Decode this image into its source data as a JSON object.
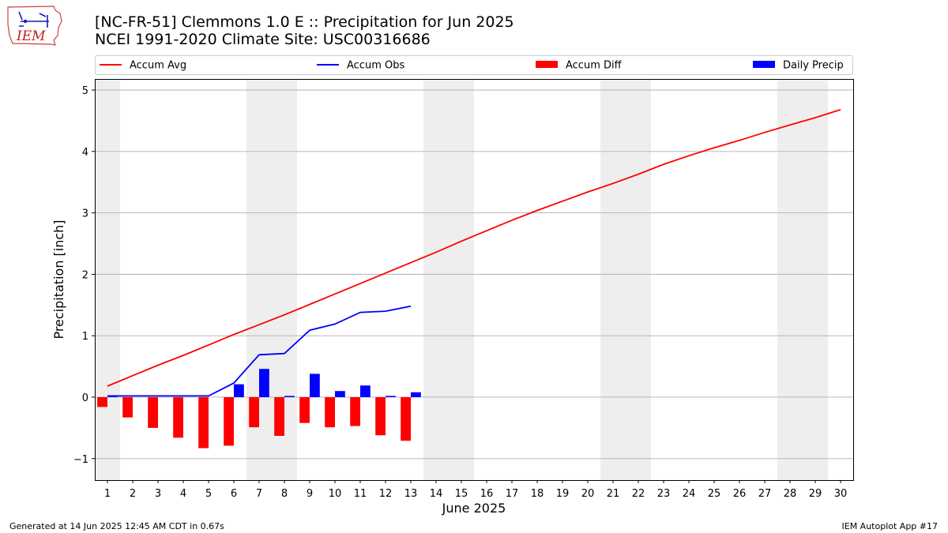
{
  "header": {
    "logo_text": "IEM",
    "title_line1": "[NC-FR-51] Clemmons 1.0 E :: Precipitation for Jun 2025",
    "title_line2": "NCEI 1991-2020 Climate Site: USC00316686"
  },
  "footer": {
    "generated": "Generated at 14 Jun 2025 12:45 AM CDT in 0.67s",
    "app": "IEM Autoplot App #17"
  },
  "colors": {
    "avg": "#ff0000",
    "obs": "#0000ff",
    "diff": "#ff0000",
    "daily": "#0000ff",
    "weekend_shade": "#eeeeee",
    "grid": "#b0b0b0"
  },
  "chart_data": {
    "type": "bar",
    "title": "[NC-FR-51] Clemmons 1.0 E :: Precipitation for Jun 2025",
    "subtitle": "NCEI 1991-2020 Climate Site: USC00316686",
    "xlabel": "June 2025",
    "ylabel": "Precipitation [inch]",
    "xlim": [
      0.5,
      30.5
    ],
    "ylim": [
      -1.35,
      5.18
    ],
    "x_ticks": [
      1,
      2,
      3,
      4,
      5,
      6,
      7,
      8,
      9,
      10,
      11,
      12,
      13,
      14,
      15,
      16,
      17,
      18,
      19,
      20,
      21,
      22,
      23,
      24,
      25,
      26,
      27,
      28,
      29,
      30
    ],
    "y_ticks": [
      -1,
      0,
      1,
      2,
      3,
      4,
      5
    ],
    "y_tick_labels": [
      "−1",
      "0",
      "1",
      "2",
      "3",
      "4",
      "5"
    ],
    "grid": "horizontal",
    "legend_placement": "top",
    "shaded_weekends": [
      [
        0.5,
        1.5
      ],
      [
        6.5,
        8.5
      ],
      [
        13.5,
        15.5
      ],
      [
        20.5,
        22.5
      ],
      [
        27.5,
        29.5
      ]
    ],
    "series": [
      {
        "name": "Accum Avg",
        "kind": "line",
        "x": [
          1,
          2,
          3,
          4,
          5,
          6,
          7,
          8,
          9,
          10,
          11,
          12,
          13,
          14,
          15,
          16,
          17,
          18,
          19,
          20,
          21,
          22,
          23,
          24,
          25,
          26,
          27,
          28,
          29,
          30
        ],
        "values": [
          0.18,
          0.35,
          0.52,
          0.68,
          0.85,
          1.02,
          1.18,
          1.34,
          1.51,
          1.68,
          1.85,
          2.02,
          2.19,
          2.36,
          2.54,
          2.71,
          2.88,
          3.04,
          3.19,
          3.34,
          3.48,
          3.63,
          3.79,
          3.93,
          4.06,
          4.18,
          4.31,
          4.43,
          4.55,
          4.68
        ]
      },
      {
        "name": "Accum Obs",
        "kind": "line",
        "x": [
          1,
          2,
          3,
          4,
          5,
          6,
          7,
          8,
          9,
          10,
          11,
          12,
          13
        ],
        "values": [
          0.02,
          0.02,
          0.02,
          0.02,
          0.02,
          0.23,
          0.69,
          0.71,
          1.09,
          1.19,
          1.38,
          1.4,
          1.48
        ]
      },
      {
        "name": "Accum Diff",
        "kind": "bar",
        "x": [
          1,
          2,
          3,
          4,
          5,
          6,
          7,
          8,
          9,
          10,
          11,
          12,
          13
        ],
        "values": [
          -0.16,
          -0.33,
          -0.5,
          -0.66,
          -0.83,
          -0.79,
          -0.49,
          -0.63,
          -0.42,
          -0.49,
          -0.47,
          -0.62,
          -0.71
        ]
      },
      {
        "name": "Daily Precip",
        "kind": "bar",
        "x": [
          1,
          2,
          3,
          4,
          5,
          6,
          7,
          8,
          9,
          10,
          11,
          12,
          13
        ],
        "values": [
          0.02,
          0.0,
          0.0,
          0.0,
          0.0,
          0.21,
          0.46,
          0.02,
          0.38,
          0.1,
          0.19,
          0.02,
          0.08
        ]
      }
    ]
  }
}
